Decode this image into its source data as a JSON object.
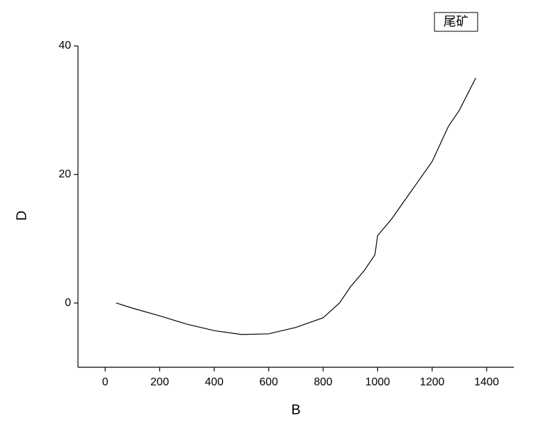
{
  "chart_data": {
    "type": "line",
    "x_label": "B",
    "y_label": "D",
    "x": [
      40,
      100,
      200,
      300,
      400,
      500,
      600,
      700,
      800,
      860,
      900,
      950,
      990,
      1000,
      1050,
      1100,
      1150,
      1200,
      1260,
      1300,
      1360
    ],
    "series": [
      {
        "name": "尾矿",
        "color": "#000000",
        "values": [
          0,
          -0.8,
          -2,
          -3.3,
          -4.3,
          -4.9,
          -4.8,
          -3.8,
          -2.3,
          0,
          2.5,
          5,
          7.5,
          10.5,
          13,
          16,
          19,
          22,
          27.5,
          30,
          35
        ]
      }
    ],
    "xlim": [
      -100,
      1500
    ],
    "xticks": [
      0,
      200,
      400,
      600,
      800,
      1000,
      1200,
      1400
    ],
    "ylim": [
      -10,
      40
    ],
    "yticks": [
      0,
      20,
      40
    ],
    "grid": false,
    "legend": "top-right"
  }
}
